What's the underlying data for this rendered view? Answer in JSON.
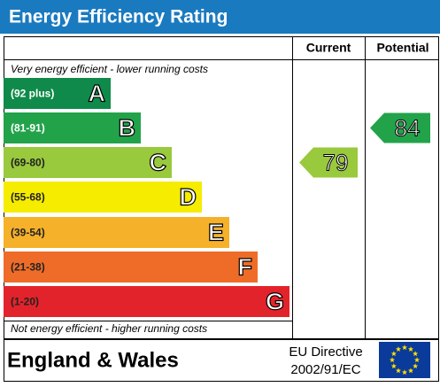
{
  "header": {
    "title": "Energy Efficiency Rating"
  },
  "columns": {
    "current": "Current",
    "potential": "Potential"
  },
  "top_note": "Very energy efficient - lower running costs",
  "bottom_note": "Not energy efficient - higher running costs",
  "bands": [
    {
      "range": "(92 plus)",
      "letter": "A",
      "color": "#0f8a4a"
    },
    {
      "range": "(81-91)",
      "letter": "B",
      "color": "#22a34a"
    },
    {
      "range": "(69-80)",
      "letter": "C",
      "color": "#99c93c"
    },
    {
      "range": "(55-68)",
      "letter": "D",
      "color": "#f5ec00"
    },
    {
      "range": "(39-54)",
      "letter": "E",
      "color": "#f5b12a"
    },
    {
      "range": "(21-38)",
      "letter": "F",
      "color": "#ee6c28"
    },
    {
      "range": "(1-20)",
      "letter": "G",
      "color": "#e3232b"
    }
  ],
  "current": {
    "value": 79,
    "color": "#99c93c"
  },
  "potential": {
    "value": 84,
    "color": "#22a34a"
  },
  "footer": {
    "region": "England & Wales",
    "directive_line1": "EU Directive",
    "directive_line2": "2002/91/EC"
  }
}
